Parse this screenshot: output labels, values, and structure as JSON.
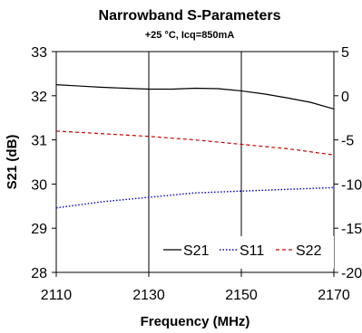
{
  "chart_data": {
    "type": "line",
    "title": "Narrowband S-Parameters",
    "subtitle": "+25 °C, Icq=850mA",
    "xlabel": "Frequency (MHz)",
    "ylabel": "S21 (dB)",
    "x_ticks": [
      "2110",
      "2130",
      "2150",
      "2170"
    ],
    "y_ticks": [
      "28",
      "29",
      "30",
      "31",
      "32",
      "33"
    ],
    "y2_ticks": [
      "-20",
      "-15",
      "-10",
      "-5",
      "0",
      "5"
    ],
    "xlim": [
      2110,
      2170
    ],
    "ylim": [
      28,
      33
    ],
    "y2lim": [
      -20,
      5
    ],
    "grid": "vertical",
    "legend_position": "bottom-right",
    "series": [
      {
        "name": "S21",
        "axis": "left",
        "color": "#000000",
        "style": "solid",
        "x": [
          2110,
          2115,
          2120,
          2125,
          2130,
          2135,
          2140,
          2145,
          2150,
          2155,
          2160,
          2165,
          2170
        ],
        "values": [
          32.25,
          32.22,
          32.19,
          32.17,
          32.15,
          32.15,
          32.17,
          32.16,
          32.11,
          32.04,
          31.95,
          31.85,
          31.7
        ]
      },
      {
        "name": "S11",
        "axis": "right",
        "color": "#0000cc",
        "style": "dotted",
        "x": [
          2110,
          2120,
          2130,
          2140,
          2150,
          2160,
          2170
        ],
        "values": [
          -12.7,
          -12.0,
          -11.5,
          -11.0,
          -10.8,
          -10.6,
          -10.4
        ]
      },
      {
        "name": "S22",
        "axis": "right",
        "color": "#cc0000",
        "style": "dashed",
        "x": [
          2110,
          2120,
          2130,
          2140,
          2150,
          2160,
          2170
        ],
        "values": [
          -4.0,
          -4.3,
          -4.6,
          -5.0,
          -5.5,
          -6.0,
          -6.7
        ]
      }
    ]
  }
}
